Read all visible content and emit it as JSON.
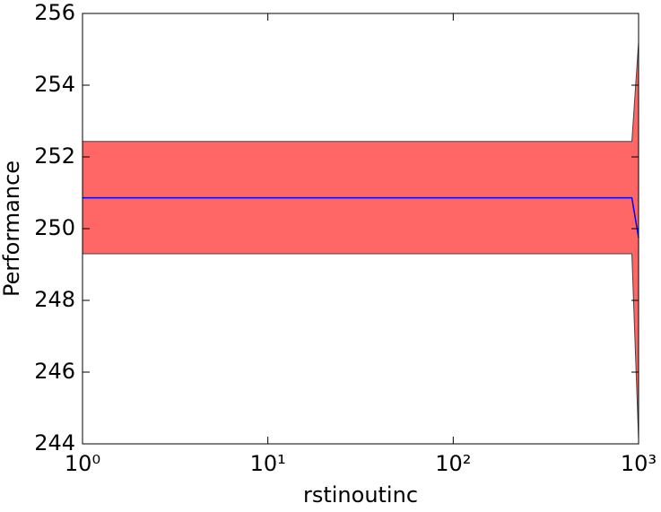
{
  "chart_data": {
    "type": "line_band",
    "xlabel": "rstinoutinc",
    "ylabel": "Performance",
    "x": [
      1,
      920,
      1000
    ],
    "values": [
      250.86,
      250.86,
      249.75
    ],
    "lower": [
      249.3,
      249.3,
      244.12
    ],
    "upper": [
      252.43,
      252.43,
      255.2
    ],
    "line_color": "#0000ff",
    "fill_color": "#ff6666",
    "edge_color": "#444444",
    "xscale": "log",
    "xlim": [
      1,
      1000
    ],
    "xticks": [
      {
        "value": 1,
        "label": "10⁰"
      },
      {
        "value": 10,
        "label": "10¹"
      },
      {
        "value": 100,
        "label": "10²"
      },
      {
        "value": 1000,
        "label": "10³"
      }
    ],
    "ylim": [
      244,
      256
    ],
    "yticks": [
      244,
      246,
      248,
      250,
      252,
      254,
      256
    ]
  }
}
